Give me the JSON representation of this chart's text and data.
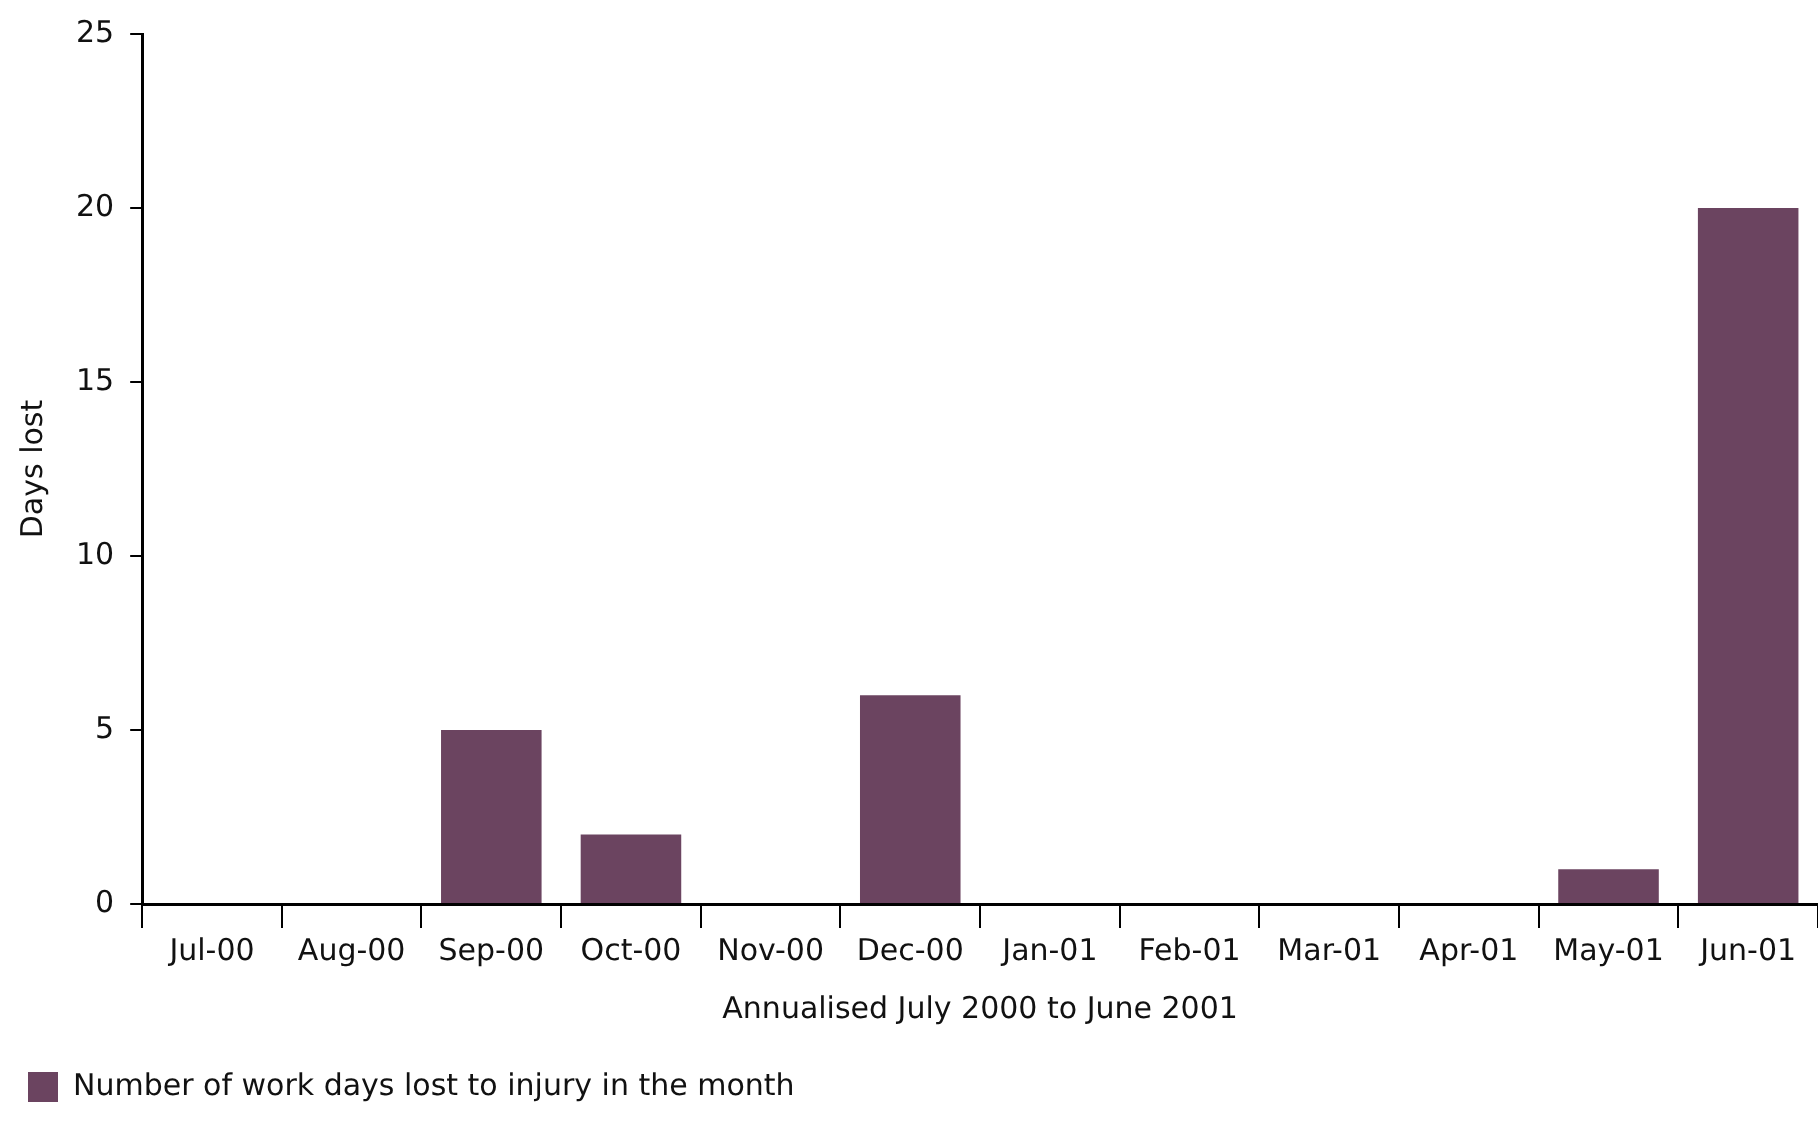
{
  "chart_data": {
    "type": "bar",
    "xlabel": "Annualised July 2000 to June 2001",
    "ylabel": "Days lost",
    "categories": [
      "Jul-00",
      "Aug-00",
      "Sep-00",
      "Oct-00",
      "Nov-00",
      "Dec-00",
      "Jan-01",
      "Feb-01",
      "Mar-01",
      "Apr-01",
      "May-01",
      "Jun-01"
    ],
    "series": [
      {
        "name": "Number of work days lost to injury in the month",
        "color": "#6b4460",
        "values": [
          0,
          0,
          5,
          2,
          0,
          6,
          0,
          0,
          0,
          0,
          1,
          20
        ]
      }
    ],
    "ylim": [
      0,
      25
    ],
    "yticks": [
      0,
      5,
      10,
      15,
      20,
      25
    ],
    "grid": false,
    "legend": "bottom left"
  }
}
